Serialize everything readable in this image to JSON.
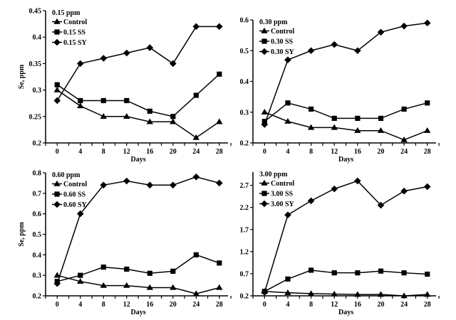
{
  "chart_data": [
    {
      "type": "line",
      "title": "0.15 ppm",
      "xlabel": "Days",
      "ylabel": "Se, ppm",
      "x": [
        0,
        4,
        8,
        12,
        16,
        20,
        24,
        28
      ],
      "xticks": [
        "0",
        "4",
        "8",
        "12",
        "16",
        "20",
        "24",
        "28"
      ],
      "yticks": [
        "0.2",
        "0.25",
        "0.3",
        "0.35",
        "0.4",
        "0.45"
      ],
      "ylim": [
        0.2,
        0.45
      ],
      "xlim": [
        -2,
        29.5
      ],
      "legend": "top-left",
      "series": [
        {
          "name": "Control",
          "marker": "triangle",
          "values": [
            0.3,
            0.27,
            0.25,
            0.25,
            0.24,
            0.24,
            0.21,
            0.24
          ]
        },
        {
          "name": "0.15 SS",
          "marker": "square",
          "values": [
            0.31,
            0.28,
            0.28,
            0.28,
            0.26,
            0.25,
            0.29,
            0.33
          ]
        },
        {
          "name": "0.15 SY",
          "marker": "diamond",
          "values": [
            0.28,
            0.35,
            0.36,
            0.37,
            0.38,
            0.35,
            0.42,
            0.42
          ]
        }
      ]
    },
    {
      "type": "line",
      "title": "0.30 ppm",
      "xlabel": "Days",
      "ylabel": "",
      "x": [
        0,
        4,
        8,
        12,
        16,
        20,
        24,
        28
      ],
      "xticks": [
        "0",
        "4",
        "8",
        "12",
        "16",
        "20",
        "24",
        "28"
      ],
      "yticks": [
        "0.2",
        "0.3",
        "0.4",
        "0.5",
        "0.6"
      ],
      "ylim": [
        0.2,
        0.6
      ],
      "xlim": [
        -2,
        29.5
      ],
      "legend": "top-left",
      "series": [
        {
          "name": "Control",
          "marker": "triangle",
          "values": [
            0.3,
            0.27,
            0.25,
            0.25,
            0.24,
            0.24,
            0.21,
            0.24
          ]
        },
        {
          "name": "0.30 SS",
          "marker": "square",
          "values": [
            0.27,
            0.33,
            0.31,
            0.28,
            0.28,
            0.28,
            0.31,
            0.33
          ]
        },
        {
          "name": "0.30 SY",
          "marker": "diamond",
          "values": [
            0.26,
            0.47,
            0.5,
            0.52,
            0.5,
            0.56,
            0.58,
            0.59
          ]
        }
      ]
    },
    {
      "type": "line",
      "title": "0.60 ppm",
      "xlabel": "Days",
      "ylabel": "Se, ppm",
      "x": [
        0,
        4,
        8,
        12,
        16,
        20,
        24,
        28
      ],
      "xticks": [
        "0",
        "4",
        "8",
        "12",
        "16",
        "20",
        "24",
        "28"
      ],
      "yticks": [
        "0.2",
        "0.3",
        "0.4",
        "0.5",
        "0.6",
        "0.7",
        "0.8"
      ],
      "ylim": [
        0.2,
        0.8
      ],
      "xlim": [
        -2,
        29.5
      ],
      "legend": "top-left",
      "series": [
        {
          "name": "Control",
          "marker": "triangle",
          "values": [
            0.3,
            0.27,
            0.25,
            0.25,
            0.24,
            0.24,
            0.21,
            0.24
          ]
        },
        {
          "name": "0.60 SS",
          "marker": "square",
          "values": [
            0.27,
            0.3,
            0.34,
            0.33,
            0.31,
            0.32,
            0.4,
            0.36
          ]
        },
        {
          "name": "0.60 SY",
          "marker": "diamond",
          "values": [
            0.26,
            0.6,
            0.74,
            0.76,
            0.74,
            0.74,
            0.78,
            0.75
          ]
        }
      ]
    },
    {
      "type": "line",
      "title": "3.00 ppm",
      "xlabel": "Days",
      "ylabel": "",
      "x": [
        0,
        4,
        8,
        12,
        16,
        20,
        24,
        28
      ],
      "xticks": [
        "0",
        "4",
        "8",
        "12",
        "16",
        "20",
        "24",
        "28"
      ],
      "yticks": [
        "0.2",
        "0.7",
        "1.2",
        "1.7",
        "2.2",
        "2.7"
      ],
      "ylim": [
        0.2,
        3.0
      ],
      "xlim": [
        -2,
        29.5
      ],
      "legend": "top-left",
      "series": [
        {
          "name": "Control",
          "marker": "triangle",
          "values": [
            0.3,
            0.27,
            0.25,
            0.24,
            0.23,
            0.23,
            0.2,
            0.23
          ]
        },
        {
          "name": "3.00 SS",
          "marker": "square",
          "values": [
            0.3,
            0.58,
            0.78,
            0.72,
            0.72,
            0.76,
            0.72,
            0.69
          ]
        },
        {
          "name": "3.00 SY",
          "marker": "diamond",
          "values": [
            0.28,
            2.03,
            2.35,
            2.62,
            2.8,
            2.25,
            2.57,
            2.67
          ]
        }
      ]
    }
  ]
}
